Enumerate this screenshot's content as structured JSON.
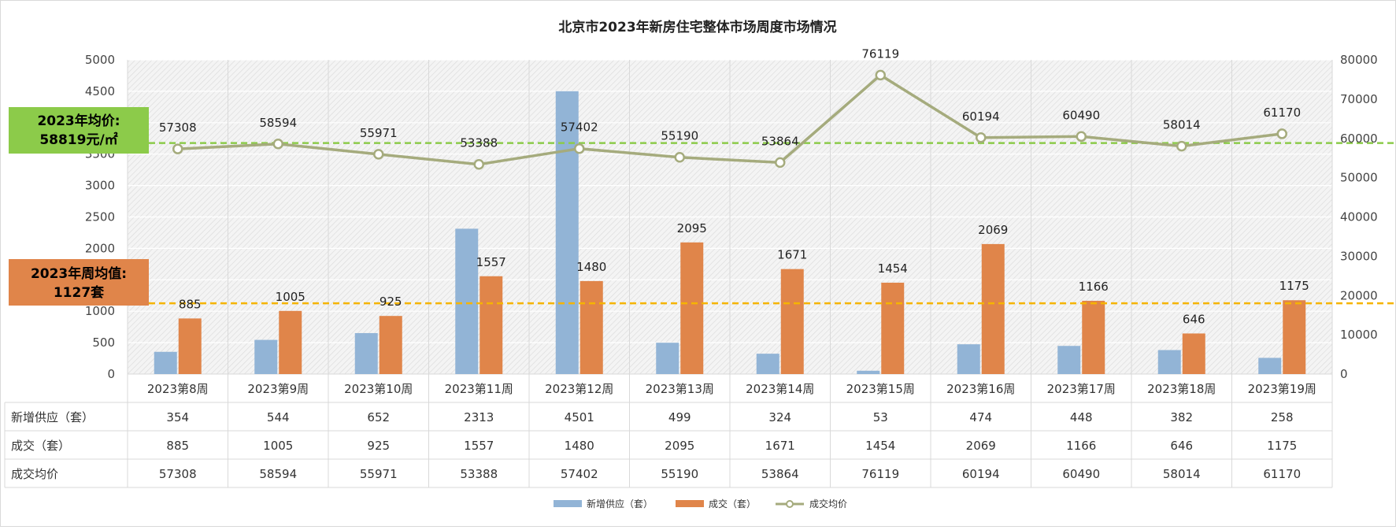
{
  "chart_data": {
    "type": "bar",
    "title": "北京市2023年新房住宅整体市场周度市场情况",
    "categories": [
      "2023第8周",
      "2023第9周",
      "2023第10周",
      "2023第11周",
      "2023第12周",
      "2023第13周",
      "2023第14周",
      "2023第15周",
      "2023第16周",
      "2023第17周",
      "2023第18周",
      "2023第19周"
    ],
    "series": [
      {
        "name": "新增供应（套）",
        "type": "bar",
        "axis": "left",
        "color": "#92b4d6",
        "values": [
          354,
          544,
          652,
          2313,
          4501,
          499,
          324,
          53,
          474,
          448,
          382,
          258
        ]
      },
      {
        "name": "成交（套）",
        "type": "bar",
        "axis": "left",
        "color": "#e0854a",
        "values": [
          885,
          1005,
          925,
          1557,
          1480,
          2095,
          1671,
          1454,
          2069,
          1166,
          646,
          1175
        ]
      },
      {
        "name": "成交均价",
        "type": "line",
        "axis": "right",
        "color": "#a5ab7d",
        "values": [
          57308,
          58594,
          55971,
          53388,
          57402,
          55190,
          53864,
          76119,
          60194,
          60490,
          58014,
          61170
        ]
      }
    ],
    "y_left": {
      "min": 0,
      "max": 5000,
      "ticks": [
        0,
        500,
        1000,
        1500,
        2000,
        2500,
        3000,
        3500,
        4000,
        4500,
        5000
      ]
    },
    "y_right": {
      "min": 0,
      "max": 80000,
      "ticks": [
        0,
        10000,
        20000,
        30000,
        40000,
        50000,
        60000,
        70000,
        80000
      ]
    },
    "grid": true,
    "legend_position": "bottom",
    "table_row_labels": [
      "新增供应（套）",
      "成交（套）",
      "成交均价"
    ],
    "annotations": [
      {
        "text_line1": "2023年均价:",
        "text_line2": "58819元/㎡",
        "value": 58819,
        "axis": "right",
        "color": "#8ccb4a",
        "line_color": "#8ccb4a"
      },
      {
        "text_line1": "2023年周均值:",
        "text_line2": "1127套",
        "value": 1127,
        "axis": "left",
        "color": "#e0854a",
        "line_color": "#f5b400"
      }
    ]
  }
}
